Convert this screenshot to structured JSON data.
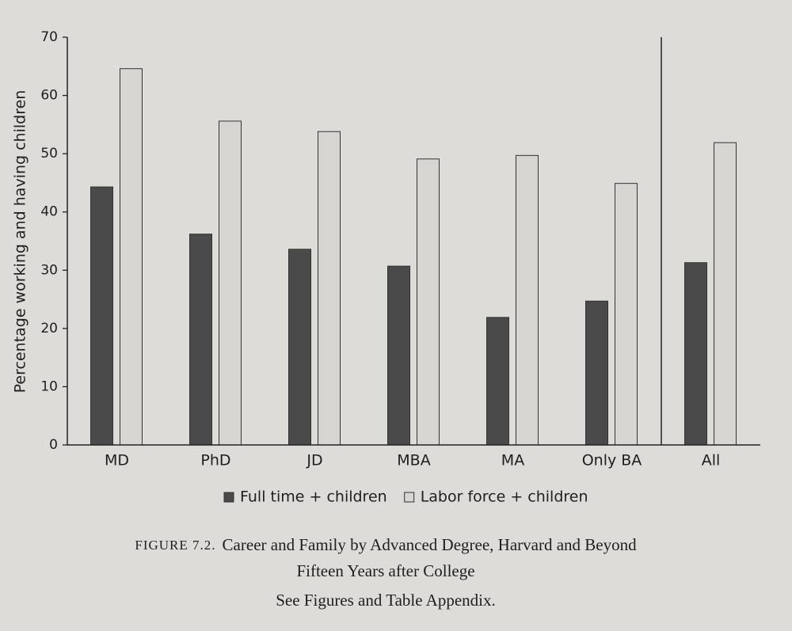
{
  "chart_data": {
    "type": "bar",
    "y_label": "Percentage working and having children",
    "categories": [
      "MD",
      "PhD",
      "JD",
      "MBA",
      "MA",
      "Only BA",
      "All"
    ],
    "series": [
      {
        "name": "Full time + children",
        "color": "#4a4a4a",
        "values": [
          44.3,
          36.2,
          33.6,
          30.7,
          21.9,
          24.7,
          31.3
        ]
      },
      {
        "name": "Labor force + children",
        "color": "#d6d5d2",
        "values": [
          64.6,
          55.6,
          53.8,
          49.1,
          49.7,
          44.9,
          51.9
        ]
      }
    ],
    "ylim": [
      0,
      70
    ],
    "yticks": [
      0,
      10,
      20,
      30,
      40,
      50,
      60,
      70
    ],
    "legend": "bottom",
    "caption": {
      "label": "FIGURE 7.2.",
      "lines": [
        "Career and Family by Advanced Degree, Harvard and Beyond",
        "Fifteen Years after College",
        "See Figures and Table Appendix."
      ]
    }
  }
}
